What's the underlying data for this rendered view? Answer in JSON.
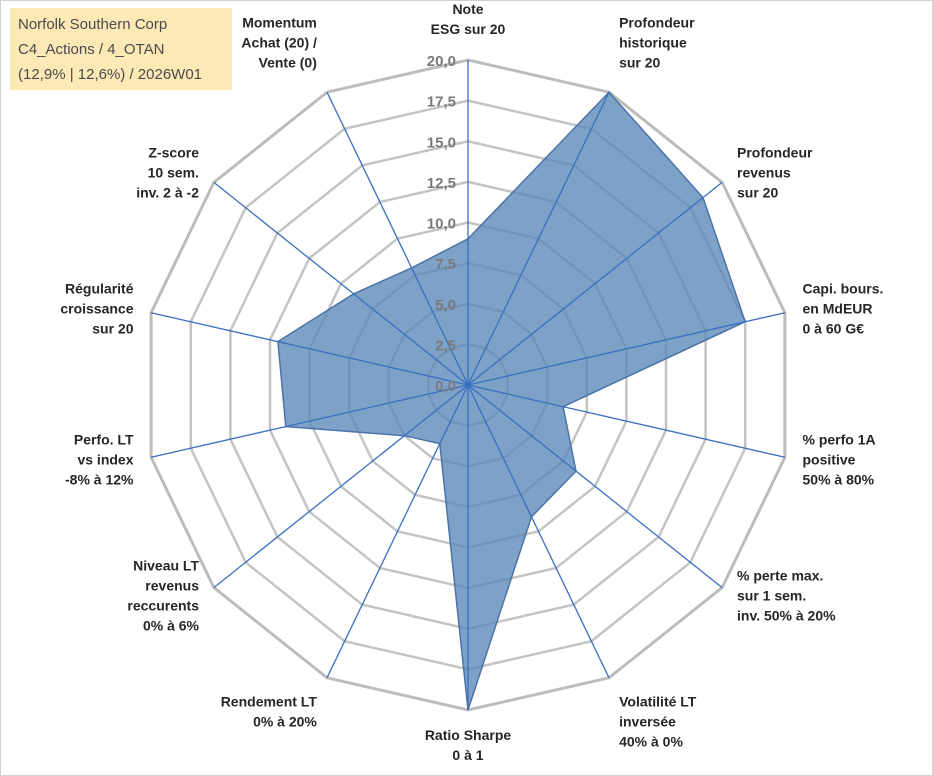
{
  "title_box": {
    "line1": "Norfolk Southern Corp",
    "line2": "C4_Actions / 4_OTAN",
    "line3": "(12,9% | 12,6%) / 2026W01"
  },
  "chart_data": {
    "type": "radar",
    "title": "Norfolk Southern Corp",
    "rmin": 0,
    "rmax": 20,
    "ticks": [
      0,
      2.5,
      5,
      7.5,
      10,
      12.5,
      15,
      17.5,
      20
    ],
    "tick_labels": [
      "0,0",
      "2,5",
      "5,0",
      "7,5",
      "10,0",
      "12,5",
      "15,0",
      "17,5",
      "20,0"
    ],
    "grid_levels": 8,
    "categories": [
      "Note ESG sur 20",
      "Profondeur historique sur 20",
      "Profondeur revenus sur 20",
      "Capi. bours. en MdEUR 0 à 60 G€",
      "% perfo 1A positive 50% à 80%",
      "% perte max. sur 1 sem. inv. 50% à 20%",
      "Volatilité LT inversée 40% à 0%",
      "Ratio Sharpe 0 à 1",
      "Rendement LT 0% à 20%",
      "Niveau LT revenus reccurents 0% à 6%",
      "Perfo. LT vs index -8% à 12%",
      "Régularité croissance sur 20",
      "Z-score 10 sem. inv. 2 à -2",
      "Momentum Achat (20) / Vente (0)"
    ],
    "category_lines": [
      [
        "Note",
        "ESG sur 20"
      ],
      [
        "Profondeur",
        "historique",
        "sur 20"
      ],
      [
        "Profondeur",
        "revenus",
        "sur 20"
      ],
      [
        "Capi. bours.",
        "en MdEUR",
        "0 à 60 G€"
      ],
      [
        "% perfo 1A",
        "positive",
        "50% à 80%"
      ],
      [
        "% perte max.",
        "sur 1 sem.",
        "inv. 50% à 20%"
      ],
      [
        "Volatilité LT",
        "inversée",
        "40% à 0%"
      ],
      [
        "Ratio Sharpe",
        "0 à 1"
      ],
      [
        "Rendement LT",
        "0% à 20%"
      ],
      [
        "Niveau LT",
        "revenus",
        "reccurents",
        "0% à 6%"
      ],
      [
        "Perfo. LT",
        "vs index",
        "-8% à 12%"
      ],
      [
        "Régularité",
        "croissance",
        "sur 20"
      ],
      [
        "Z-score",
        "10 sem.",
        "inv. 2 à -2"
      ],
      [
        "Momentum",
        "Achat (20) /",
        "Vente (0)"
      ]
    ],
    "series": [
      {
        "name": "Norfolk Southern Corp",
        "values": [
          9.0,
          20.0,
          18.5,
          17.5,
          6.0,
          8.5,
          9.0,
          20.0,
          4.0,
          5.0,
          11.5,
          12.0,
          9.0,
          8.0
        ]
      }
    ],
    "colors": {
      "fill": "#5a86b8",
      "fill_opacity": 0.78,
      "stroke": "#4a74a8",
      "spoke": "#3a6fc0",
      "grid": "#c4c4c4",
      "outer_grid": "#bcbcbc"
    }
  }
}
